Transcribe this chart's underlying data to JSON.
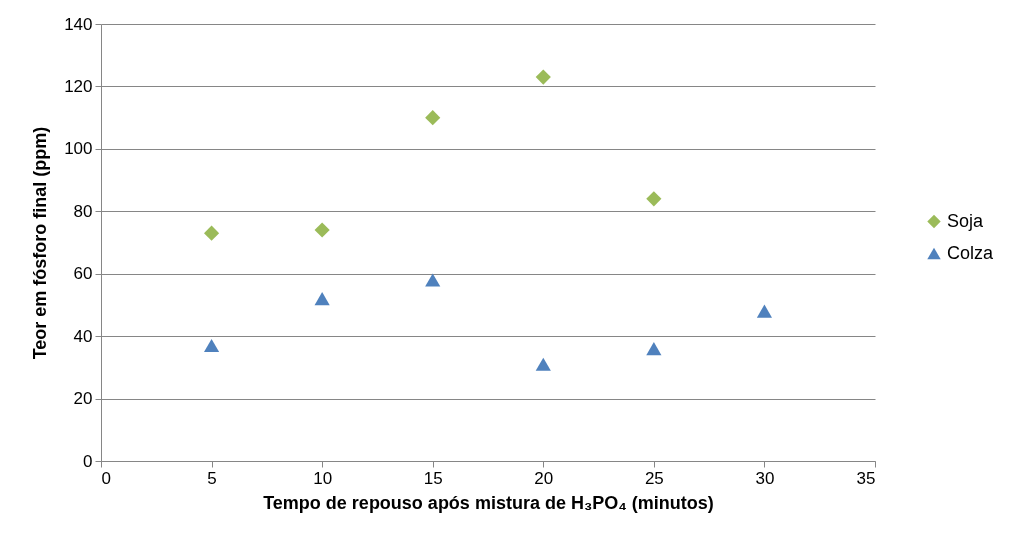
{
  "chart_data": {
    "type": "scatter",
    "xlabel": "Tempo de repouso após mistura de H₃PO₄ (minutos)",
    "ylabel": "Teor em fósforo final (ppm)",
    "xlim": [
      0,
      35
    ],
    "xticks": [
      0,
      5,
      10,
      15,
      20,
      25,
      30,
      35
    ],
    "ylim": [
      0,
      140
    ],
    "yticks": [
      0,
      20,
      40,
      60,
      80,
      100,
      120,
      140
    ],
    "grid": "y",
    "legend": "right",
    "series": [
      {
        "name": "Soja",
        "color": "#9bbb59",
        "marker": "diamond",
        "x": [
          5,
          10,
          15,
          20,
          25
        ],
        "values": [
          73,
          74,
          110,
          123,
          84
        ]
      },
      {
        "name": "Colza",
        "color": "#4f81bd",
        "marker": "triangle",
        "x": [
          5,
          10,
          15,
          20,
          25,
          30
        ],
        "values": [
          37,
          52,
          58,
          31,
          36,
          48
        ]
      }
    ]
  }
}
